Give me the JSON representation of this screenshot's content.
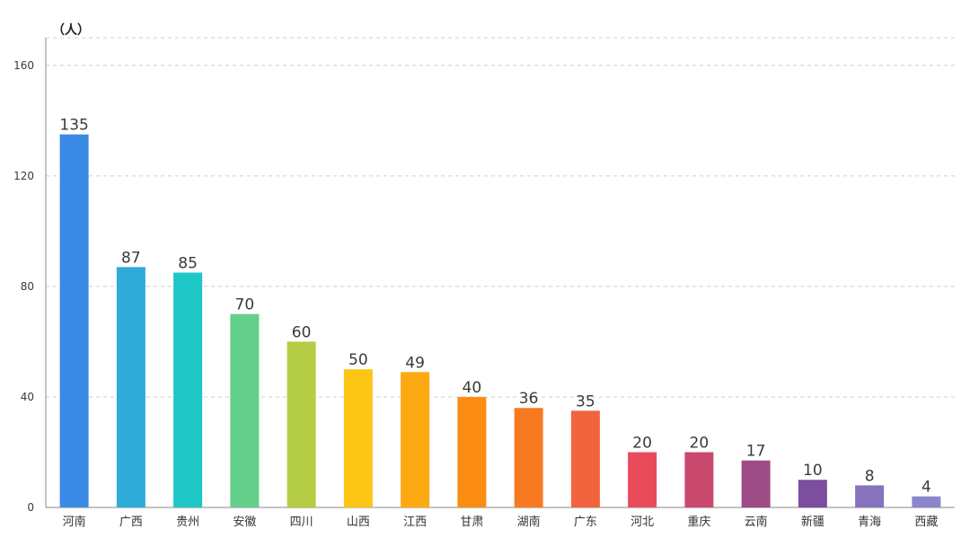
{
  "chart_data": {
    "type": "bar",
    "y_unit_label": "（人）",
    "categories": [
      "河南",
      "广西",
      "贵州",
      "安徽",
      "四川",
      "山西",
      "江西",
      "甘肃",
      "湖南",
      "广东",
      "河北",
      "重庆",
      "云南",
      "新疆",
      "青海",
      "西藏"
    ],
    "values": [
      135,
      87,
      85,
      70,
      60,
      50,
      49,
      40,
      36,
      35,
      20,
      20,
      17,
      10,
      8,
      4
    ],
    "bar_colors": [
      "#3a8ae6",
      "#2eabd8",
      "#1fc6c6",
      "#63cf8a",
      "#b5cc45",
      "#fdc515",
      "#fda912",
      "#fc8d13",
      "#f77a20",
      "#f2643e",
      "#e94b5b",
      "#c9496e",
      "#9e4c85",
      "#7b4e9f",
      "#8773bd",
      "#8a86cc"
    ],
    "yticks": [
      0,
      40,
      80,
      120,
      160
    ],
    "ylim": [
      0,
      170
    ],
    "grid": true,
    "legend": "none"
  }
}
